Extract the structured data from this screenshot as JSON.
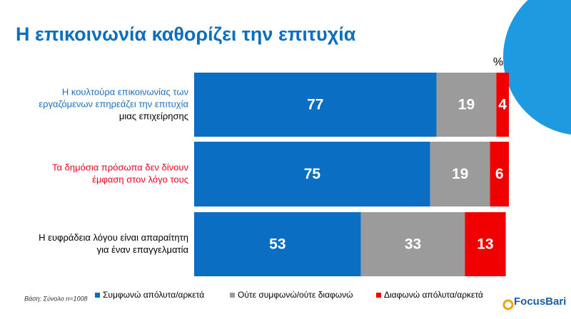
{
  "chart_data": {
    "type": "stacked-bar-horizontal",
    "title": "Η επικοινωνία καθορίζει την επιτυχία",
    "unit_label": "%",
    "note": "Βάση: Σύνολο n=1008",
    "brand": "FocusBari",
    "categories": [
      [
        "Η κουλτούρα επικοινωνίας  των",
        "εργαζόμενων επηρεάζει την επιτυχία",
        "μιας επιχείρησης"
      ],
      [
        "Τα δημόσια πρόσωπα δεν δίνουν",
        "έμφαση στον λόγο τους"
      ],
      [
        "Η ευφράδεια  λόγου είναι απαραίτητη",
        "για έναν επαγγελματία"
      ]
    ],
    "category_line_colors": [
      [
        "#1a6fc0",
        "#1a6fc0",
        "#000000"
      ],
      [
        "#e8001c",
        "#e8001c"
      ],
      [
        "#000000",
        "#000000"
      ]
    ],
    "series": [
      {
        "name": "Συμφωνώ απόλυτα/αρκετά",
        "color": "#0a6fc2",
        "values": [
          77,
          75,
          53
        ]
      },
      {
        "name": "Ούτε συμφωνώ/ούτε διαφωνώ",
        "color": "#9b9b9b",
        "values": [
          19,
          19,
          33
        ]
      },
      {
        "name": "Διαφωνώ απόλυτα/αρκετά",
        "color": "#f00000",
        "values": [
          4,
          6,
          13
        ]
      }
    ],
    "xlim": [
      0,
      100
    ]
  }
}
